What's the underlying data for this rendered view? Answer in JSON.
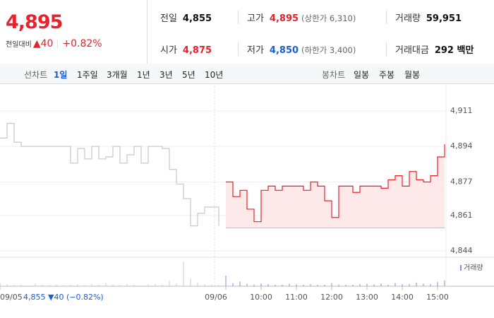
{
  "quote": {
    "price": "4,895",
    "change_label": "전일대비",
    "change": "▲40",
    "change_rate": "+0.82%"
  },
  "summary": {
    "rows": [
      [
        {
          "label": "전일",
          "value": "4,855"
        },
        {
          "label": "고가",
          "value": "4,895",
          "note": "(상한가 6,310)"
        },
        {
          "label": "거래량",
          "value": "59,951"
        }
      ],
      [
        {
          "label": "시가",
          "value": "4,875"
        },
        {
          "label": "저가",
          "value": "4,850",
          "note": "(하한가 3,400)"
        },
        {
          "label": "거래대금",
          "value": "292 백만"
        }
      ]
    ]
  },
  "tabs": {
    "line_label": "선차트",
    "line": [
      "1일",
      "1주일",
      "3개월",
      "1년",
      "3년",
      "5년",
      "10년"
    ],
    "candle_label": "봉차트",
    "candle": [
      "일봉",
      "주봉",
      "월봉"
    ]
  },
  "footer": "4,855 ▼40 (−0.82%)",
  "chart_data": {
    "type": "line",
    "x": [
      0,
      1,
      2,
      3,
      4,
      5,
      6,
      7,
      8,
      9,
      10,
      11,
      12,
      13,
      14,
      15,
      16,
      17,
      18,
      19,
      20,
      21,
      22,
      23,
      24,
      25,
      26,
      27,
      28,
      29,
      30,
      31,
      32,
      33,
      34,
      35,
      36,
      37,
      38,
      39,
      40,
      41,
      42,
      43,
      44,
      45,
      46,
      47,
      48,
      49,
      50,
      51,
      52,
      53,
      54,
      55,
      56,
      57,
      58,
      59,
      60,
      61,
      62,
      63
    ],
    "xlim": [
      0,
      63
    ],
    "xticks": [
      {
        "value": 0,
        "label": "09/05"
      },
      {
        "value": 32,
        "label": "09/06"
      },
      {
        "value": 37,
        "label": "10:00"
      },
      {
        "value": 42,
        "label": "11:00"
      },
      {
        "value": 47,
        "label": "12:00"
      },
      {
        "value": 52,
        "label": "13:00"
      },
      {
        "value": 57,
        "label": "14:00"
      },
      {
        "value": 62,
        "label": "15:00"
      }
    ],
    "ylim": [
      4841,
      4914
    ],
    "yticks": [
      {
        "value": 4911,
        "label": "4,911"
      },
      {
        "value": 4894,
        "label": "4,894"
      },
      {
        "value": 4877,
        "label": "4,877"
      },
      {
        "value": 4861,
        "label": "4,861"
      },
      {
        "value": 4844,
        "label": "4,844"
      }
    ],
    "grid": true,
    "fill_to": 4855,
    "series": [
      {
        "name": "09/05",
        "color": "#c8c8c8",
        "values": [
          4898,
          4905,
          4896,
          4894,
          4894,
          4894,
          4894,
          4894,
          4894,
          4894,
          4886,
          4893,
          4888,
          4894,
          4888,
          4889,
          4894,
          4886,
          4890,
          4894,
          4886,
          4894,
          4894,
          4893,
          4883,
          4876,
          4869,
          4856,
          4862,
          4865,
          4865,
          4856,
          null,
          null,
          null,
          null,
          null,
          null,
          null,
          null,
          null,
          null,
          null,
          null,
          null,
          null,
          null,
          null,
          null,
          null,
          null,
          null,
          null,
          null,
          null,
          null,
          null,
          null,
          null,
          null,
          null,
          null,
          null,
          null
        ]
      },
      {
        "name": "09/06",
        "color": "#e8212c",
        "area": "#fde3e3",
        "values": [
          null,
          null,
          null,
          null,
          null,
          null,
          null,
          null,
          null,
          null,
          null,
          null,
          null,
          null,
          null,
          null,
          null,
          null,
          null,
          null,
          null,
          null,
          null,
          null,
          null,
          null,
          null,
          null,
          null,
          null,
          null,
          null,
          4877,
          4870,
          4873,
          4864,
          4858,
          4873,
          4875,
          4873,
          4875,
          4875,
          4875,
          4873,
          4877,
          4875,
          4868,
          4860,
          4875,
          4875,
          4872,
          4875,
          4875,
          4875,
          4874,
          4878,
          4880,
          4875,
          4882,
          4878,
          4877,
          4880,
          4889,
          4895
        ]
      }
    ],
    "volume": {
      "name": "거래량",
      "ylim": [
        0,
        100
      ],
      "values": [
        12,
        8,
        5,
        6,
        4,
        10,
        6,
        5,
        7,
        4,
        6,
        8,
        5,
        9,
        6,
        12,
        7,
        5,
        8,
        6,
        4,
        7,
        9,
        6,
        20,
        10,
        95,
        30,
        14,
        8,
        6,
        5,
        40,
        12,
        18,
        9,
        7,
        10,
        8,
        6,
        5,
        9,
        7,
        6,
        8,
        5,
        6,
        12,
        7,
        5,
        6,
        8,
        9,
        7,
        10,
        6,
        12,
        8,
        9,
        14,
        10,
        8,
        16,
        22
      ]
    }
  }
}
